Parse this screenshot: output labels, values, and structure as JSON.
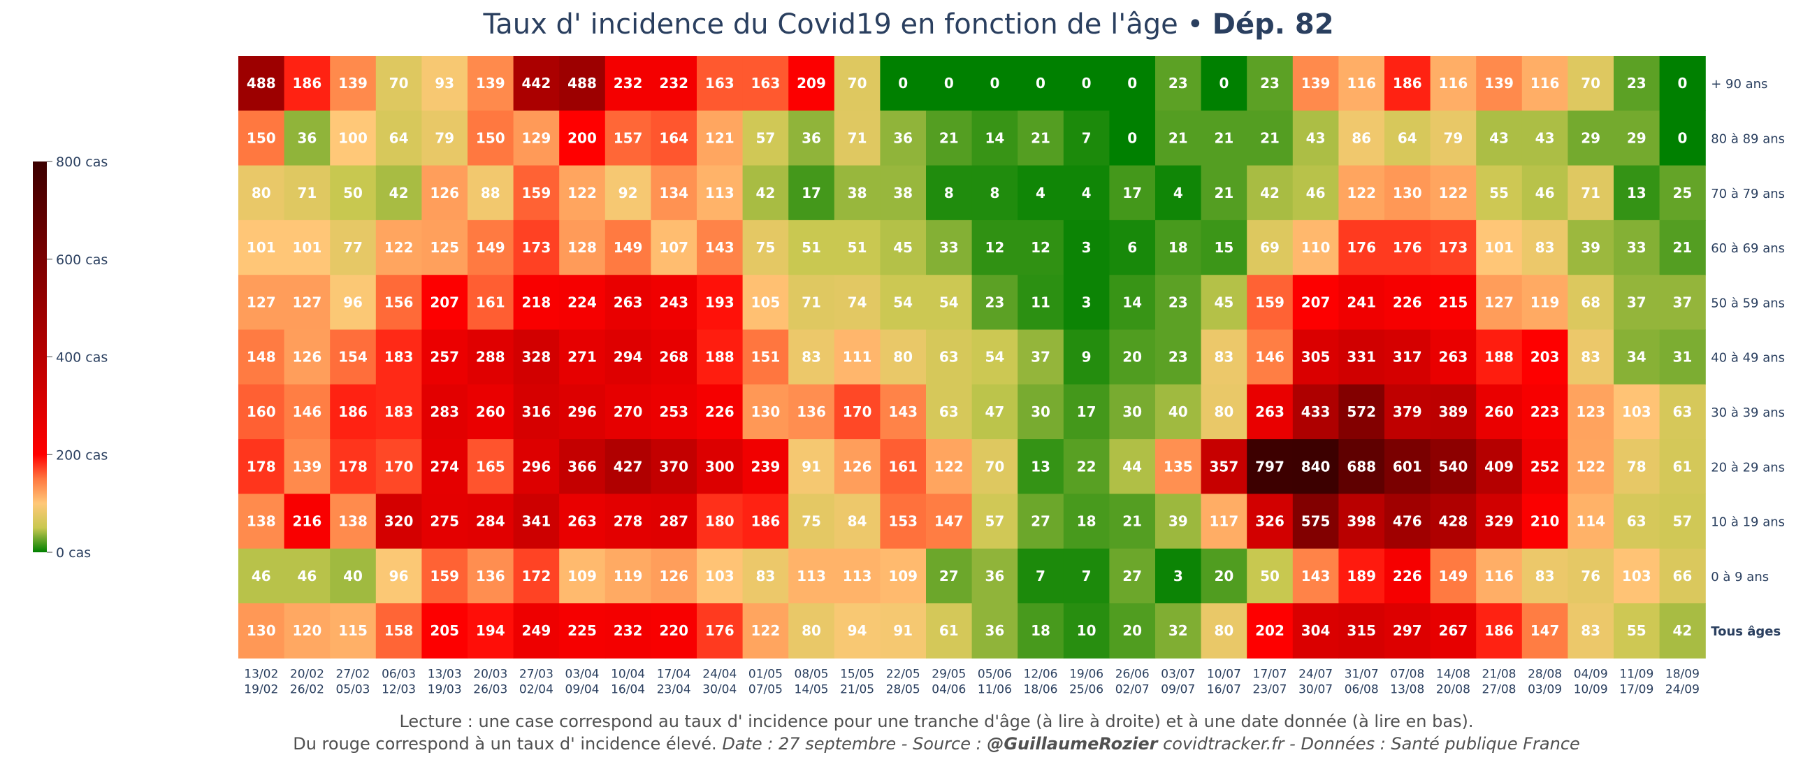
{
  "title": {
    "main": "Taux d' incidence du Covid19 en fonction de l'âge • ",
    "bold": "Dép. 82"
  },
  "colorbar": {
    "tick_labels": [
      "800 cas",
      "600 cas",
      "400 cas",
      "200 cas",
      "0 cas"
    ],
    "tick_values": [
      800,
      600,
      400,
      200,
      0
    ],
    "stops": [
      {
        "v": 0,
        "color": "#008000"
      },
      {
        "v": 50,
        "color": "#c8c850"
      },
      {
        "v": 100,
        "color": "#ffc878"
      },
      {
        "v": 150,
        "color": "#ff7840"
      },
      {
        "v": 200,
        "color": "#ff0000"
      },
      {
        "v": 400,
        "color": "#b80000"
      },
      {
        "v": 800,
        "color": "#3c0000"
      }
    ]
  },
  "footer": {
    "line1": "Lecture : une case correspond au taux d' incidence pour une tranche d'âge (à lire à droite) et à une date donnée (à lire en bas).",
    "line2_plain": "Du rouge correspond à un taux d' incidence élevé.  ",
    "line2_italic_a": "Date : 27 septembre - Source : ",
    "line2_bold_italic": "@GuillaumeRozier",
    "line2_italic_b": " covidtracker.fr - Données : Santé publique France"
  },
  "chart_data": {
    "type": "heatmap",
    "title": "Taux d' incidence du Covid19 en fonction de l'âge • Dép. 82",
    "colorbar_range": [
      0,
      800
    ],
    "x_labels": [
      [
        "13/02",
        "19/02"
      ],
      [
        "20/02",
        "26/02"
      ],
      [
        "27/02",
        "05/03"
      ],
      [
        "06/03",
        "12/03"
      ],
      [
        "13/03",
        "19/03"
      ],
      [
        "20/03",
        "26/03"
      ],
      [
        "27/03",
        "02/04"
      ],
      [
        "03/04",
        "09/04"
      ],
      [
        "10/04",
        "16/04"
      ],
      [
        "17/04",
        "23/04"
      ],
      [
        "24/04",
        "30/04"
      ],
      [
        "01/05",
        "07/05"
      ],
      [
        "08/05",
        "14/05"
      ],
      [
        "15/05",
        "21/05"
      ],
      [
        "22/05",
        "28/05"
      ],
      [
        "29/05",
        "04/06"
      ],
      [
        "05/06",
        "11/06"
      ],
      [
        "12/06",
        "18/06"
      ],
      [
        "19/06",
        "25/06"
      ],
      [
        "26/06",
        "02/07"
      ],
      [
        "03/07",
        "09/07"
      ],
      [
        "10/07",
        "16/07"
      ],
      [
        "17/07",
        "23/07"
      ],
      [
        "24/07",
        "30/07"
      ],
      [
        "31/07",
        "06/08"
      ],
      [
        "07/08",
        "13/08"
      ],
      [
        "14/08",
        "20/08"
      ],
      [
        "21/08",
        "27/08"
      ],
      [
        "28/08",
        "03/09"
      ],
      [
        "04/09",
        "10/09"
      ],
      [
        "11/09",
        "17/09"
      ],
      [
        "18/09",
        "24/09"
      ]
    ],
    "rows": [
      {
        "label": "+ 90 ans",
        "bold": false,
        "values": [
          488,
          186,
          139,
          70,
          93,
          139,
          442,
          488,
          232,
          232,
          163,
          163,
          209,
          70,
          0,
          0,
          0,
          0,
          0,
          0,
          23,
          0,
          23,
          139,
          116,
          186,
          116,
          139,
          116,
          70,
          23,
          0
        ]
      },
      {
        "label": "80 à 89 ans",
        "bold": false,
        "values": [
          150,
          36,
          100,
          64,
          79,
          150,
          129,
          200,
          157,
          164,
          121,
          57,
          36,
          71,
          36,
          21,
          14,
          21,
          7,
          0,
          21,
          21,
          21,
          43,
          86,
          64,
          79,
          43,
          43,
          29,
          29,
          0
        ]
      },
      {
        "label": "70 à 79 ans",
        "bold": false,
        "values": [
          80,
          71,
          50,
          42,
          126,
          88,
          159,
          122,
          92,
          134,
          113,
          42,
          17,
          38,
          38,
          8,
          8,
          4,
          4,
          17,
          4,
          21,
          42,
          46,
          122,
          130,
          122,
          55,
          46,
          71,
          13,
          25
        ]
      },
      {
        "label": "60 à 69 ans",
        "bold": false,
        "values": [
          101,
          101,
          77,
          122,
          125,
          149,
          173,
          128,
          149,
          107,
          143,
          75,
          51,
          51,
          45,
          33,
          12,
          12,
          3,
          6,
          18,
          15,
          69,
          110,
          176,
          176,
          173,
          101,
          83,
          39,
          33,
          21
        ]
      },
      {
        "label": "50 à 59 ans",
        "bold": false,
        "values": [
          127,
          127,
          96,
          156,
          207,
          161,
          218,
          224,
          263,
          243,
          193,
          105,
          71,
          74,
          54,
          54,
          23,
          11,
          3,
          14,
          23,
          45,
          159,
          207,
          241,
          226,
          215,
          127,
          119,
          68,
          37,
          37
        ]
      },
      {
        "label": "40 à 49 ans",
        "bold": false,
        "values": [
          148,
          126,
          154,
          183,
          257,
          288,
          328,
          271,
          294,
          268,
          188,
          151,
          83,
          111,
          80,
          63,
          54,
          37,
          9,
          20,
          23,
          83,
          146,
          305,
          331,
          317,
          263,
          188,
          203,
          83,
          34,
          31
        ]
      },
      {
        "label": "30 à 39 ans",
        "bold": false,
        "values": [
          160,
          146,
          186,
          183,
          283,
          260,
          316,
          296,
          270,
          253,
          226,
          130,
          136,
          170,
          143,
          63,
          47,
          30,
          17,
          30,
          40,
          80,
          263,
          433,
          572,
          379,
          389,
          260,
          223,
          123,
          103,
          63
        ]
      },
      {
        "label": "20 à 29 ans",
        "bold": false,
        "values": [
          178,
          139,
          178,
          170,
          274,
          165,
          296,
          366,
          427,
          370,
          300,
          239,
          91,
          126,
          161,
          122,
          70,
          13,
          22,
          44,
          135,
          357,
          797,
          840,
          688,
          601,
          540,
          409,
          252,
          122,
          78,
          61
        ]
      },
      {
        "label": "10 à 19 ans",
        "bold": false,
        "values": [
          138,
          216,
          138,
          320,
          275,
          284,
          341,
          263,
          278,
          287,
          180,
          186,
          75,
          84,
          153,
          147,
          57,
          27,
          18,
          21,
          39,
          117,
          326,
          575,
          398,
          476,
          428,
          329,
          210,
          114,
          63,
          57
        ]
      },
      {
        "label": "0 à 9 ans",
        "bold": false,
        "values": [
          46,
          46,
          40,
          96,
          159,
          136,
          172,
          109,
          119,
          126,
          103,
          83,
          113,
          113,
          109,
          27,
          36,
          7,
          7,
          27,
          3,
          20,
          50,
          143,
          189,
          226,
          149,
          116,
          83,
          76,
          103,
          66
        ]
      },
      {
        "label": "Tous âges",
        "bold": true,
        "values": [
          130,
          120,
          115,
          158,
          205,
          194,
          249,
          225,
          232,
          220,
          176,
          122,
          80,
          94,
          91,
          61,
          36,
          18,
          10,
          20,
          32,
          80,
          202,
          304,
          315,
          297,
          267,
          186,
          147,
          83,
          55,
          42
        ]
      }
    ]
  }
}
